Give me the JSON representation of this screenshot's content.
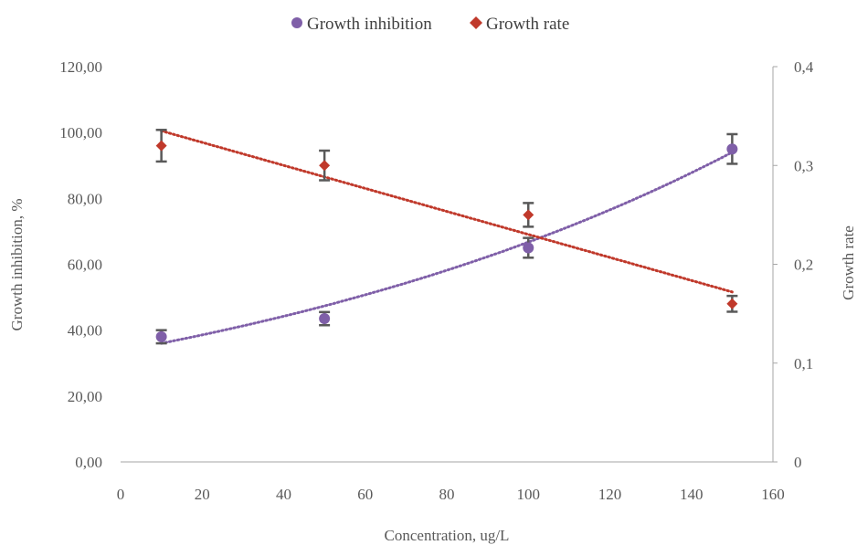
{
  "chart_data": {
    "type": "scatter",
    "xlabel": "Concentration, ug/L",
    "ylabel_left": "Growth inhibition, %",
    "ylabel_right": "Growth rate",
    "xlim": [
      0,
      160
    ],
    "ylim_left": [
      0,
      120
    ],
    "ylim_right": [
      0,
      0.4
    ],
    "x_ticks": [
      0,
      20,
      40,
      60,
      80,
      100,
      120,
      140,
      160
    ],
    "x_tick_labels": [
      "0",
      "20",
      "40",
      "60",
      "80",
      "100",
      "120",
      "140",
      "160"
    ],
    "y_left_ticks": [
      0,
      20,
      40,
      60,
      80,
      100,
      120
    ],
    "y_left_tick_labels": [
      "0,00",
      "20,00",
      "40,00",
      "60,00",
      "80,00",
      "100,00",
      "120,00"
    ],
    "y_right_ticks": [
      0,
      0.1,
      0.2,
      0.3,
      0.4
    ],
    "y_right_tick_labels": [
      "0",
      "0,1",
      "0,2",
      "0,3",
      "0,4"
    ],
    "grid": false,
    "legend_position": "top-center",
    "series": [
      {
        "name": "Growth inhibition",
        "axis": "left",
        "marker": "circle",
        "color": "#7F5FA8",
        "x": [
          10,
          50,
          100,
          150
        ],
        "y": [
          38.0,
          43.5,
          65.0,
          95.0
        ],
        "error": [
          2.0,
          2.0,
          3.0,
          4.5
        ],
        "trendline": {
          "type": "exponential",
          "x_range": [
            10,
            150
          ],
          "y_range": [
            36.0,
            94.0
          ],
          "style": "dotted"
        }
      },
      {
        "name": "Growth rate",
        "axis": "right",
        "marker": "diamond",
        "color": "#C0392B",
        "x": [
          10,
          50,
          100,
          150
        ],
        "y": [
          0.32,
          0.3,
          0.25,
          0.16
        ],
        "error": [
          0.016,
          0.015,
          0.012,
          0.008
        ],
        "trendline": {
          "type": "linear",
          "x_range": [
            10,
            150
          ],
          "y_range": [
            0.335,
            0.172
          ],
          "style": "dotted"
        }
      }
    ]
  },
  "colors": {
    "axis": "#A6A6A6",
    "text": "#595959",
    "errorbar": "#595959"
  }
}
